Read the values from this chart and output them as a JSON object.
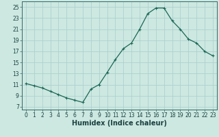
{
  "title": "",
  "xlabel": "Humidex (Indice chaleur)",
  "ylabel": "",
  "x_ticks": [
    0,
    1,
    2,
    3,
    4,
    5,
    6,
    7,
    8,
    9,
    10,
    11,
    12,
    13,
    14,
    15,
    16,
    17,
    18,
    19,
    20,
    21,
    22,
    23
  ],
  "y_ticks": [
    7,
    9,
    11,
    13,
    15,
    17,
    19,
    21,
    23,
    25
  ],
  "xlim_left": -0.5,
  "xlim_right": 23.5,
  "ylim_bottom": 6.5,
  "ylim_top": 26.0,
  "bg_color": "#cce8e0",
  "grid_color": "#aacccc",
  "line_color": "#1a6655",
  "marker_color": "#1a6655",
  "hours": [
    0,
    1,
    2,
    3,
    4,
    5,
    6,
    7,
    8,
    9,
    10,
    11,
    12,
    13,
    14,
    15,
    16,
    17,
    18,
    19,
    20,
    21,
    22,
    23
  ],
  "values": [
    11.2,
    10.8,
    10.4,
    9.8,
    9.2,
    8.6,
    8.2,
    7.8,
    10.2,
    11.0,
    13.2,
    15.5,
    17.5,
    18.5,
    21.0,
    23.8,
    24.8,
    24.8,
    22.5,
    21.0,
    19.2,
    18.5,
    17.0,
    16.2
  ],
  "marker_size": 3,
  "line_width": 0.9,
  "tick_fontsize": 5.5,
  "label_fontsize": 7.0,
  "spine_color": "#336666"
}
